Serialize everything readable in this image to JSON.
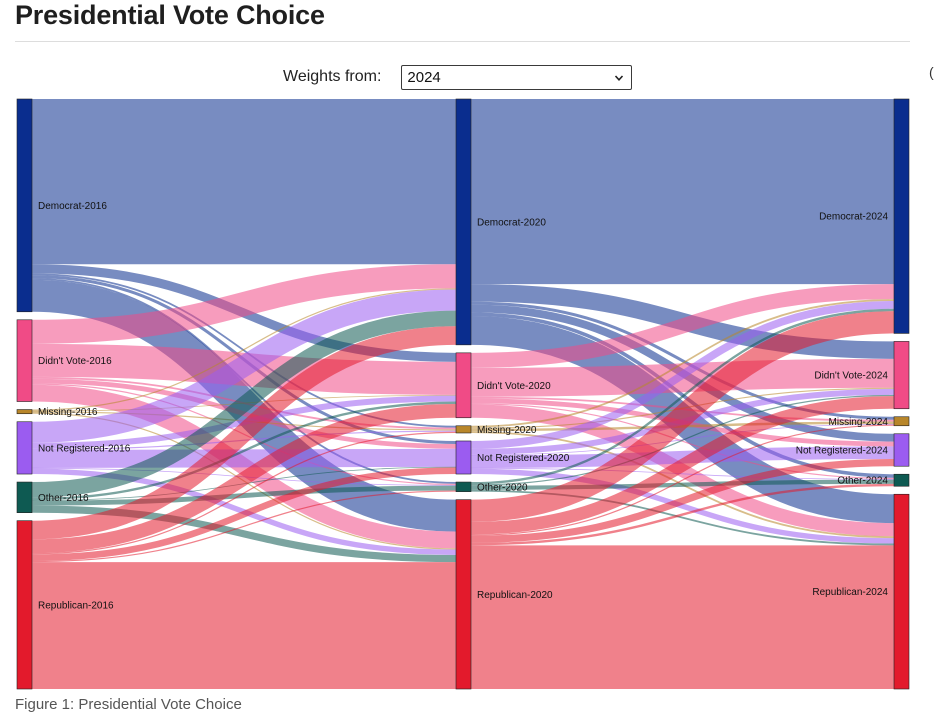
{
  "page": {
    "title": "Presidential Vote Choice",
    "caption": "Figure 1: Presidential Vote Choice",
    "edge_mark": "("
  },
  "controls": {
    "weights_label": "Weights from:",
    "weights_selected": "2024"
  },
  "colors": {
    "Democrat": "#0a2d8e",
    "Didn't Vote": "#f04b86",
    "Missing": "#b8862a",
    "Not Registered": "#9b5cf0",
    "Other": "#0e5a52",
    "Republican": "#e31a2c"
  },
  "chart_data": {
    "type": "sankey",
    "title": "Presidential Vote Choice",
    "columns": [
      "2016",
      "2020",
      "2024"
    ],
    "categories": [
      "Democrat",
      "Didn't Vote",
      "Missing",
      "Not Registered",
      "Other",
      "Republican"
    ],
    "nodes": [
      {
        "id": "Democrat-2016",
        "label": "Democrat-2016",
        "category": "Democrat",
        "column": 0,
        "value": 35.4
      },
      {
        "id": "Didn't Vote-2016",
        "label": "Didn't Vote-2016",
        "category": "Didn't Vote",
        "column": 0,
        "value": 13.6
      },
      {
        "id": "Missing-2016",
        "label": "Missing-2016",
        "category": "Missing",
        "column": 0,
        "value": 0.7
      },
      {
        "id": "Not Registered-2016",
        "label": "Not Registered-2016",
        "category": "Not Registered",
        "column": 0,
        "value": 8.7
      },
      {
        "id": "Other-2016",
        "label": "Other-2016",
        "category": "Other",
        "column": 0,
        "value": 5.1
      },
      {
        "id": "Republican-2016",
        "label": "Republican-2016",
        "category": "Republican",
        "column": 0,
        "value": 28.0
      },
      {
        "id": "Democrat-2020",
        "label": "Democrat-2020",
        "category": "Democrat",
        "column": 1,
        "value": 40.9
      },
      {
        "id": "Didn't Vote-2020",
        "label": "Didn't Vote-2020",
        "category": "Didn't Vote",
        "column": 1,
        "value": 10.8
      },
      {
        "id": "Missing-2020",
        "label": "Missing-2020",
        "category": "Missing",
        "column": 1,
        "value": 1.2
      },
      {
        "id": "Not Registered-2020",
        "label": "Not Registered-2020",
        "category": "Not Registered",
        "column": 1,
        "value": 5.5
      },
      {
        "id": "Other-2020",
        "label": "Other-2020",
        "category": "Other",
        "column": 1,
        "value": 1.6
      },
      {
        "id": "Republican-2020",
        "label": "Republican-2020",
        "category": "Republican",
        "column": 1,
        "value": 31.5
      },
      {
        "id": "Democrat-2024",
        "label": "Democrat-2024",
        "category": "Democrat",
        "column": 2,
        "value": 39.0
      },
      {
        "id": "Didn't Vote-2024",
        "label": "Didn't Vote-2024",
        "category": "Didn't Vote",
        "column": 2,
        "value": 11.2
      },
      {
        "id": "Missing-2024",
        "label": "Missing-2024",
        "category": "Missing",
        "column": 2,
        "value": 1.5
      },
      {
        "id": "Not Registered-2024",
        "label": "Not Registered-2024",
        "category": "Not Registered",
        "column": 2,
        "value": 5.4
      },
      {
        "id": "Other-2024",
        "label": "Other-2024",
        "category": "Other",
        "column": 2,
        "value": 2.0
      },
      {
        "id": "Republican-2024",
        "label": "Republican-2024",
        "category": "Republican",
        "column": 2,
        "value": 32.4
      }
    ],
    "links": [
      {
        "source": "Democrat-2016",
        "target": "Democrat-2020",
        "value": 27.5
      },
      {
        "source": "Democrat-2016",
        "target": "Didn't Vote-2020",
        "value": 1.5
      },
      {
        "source": "Democrat-2016",
        "target": "Missing-2020",
        "value": 0.3
      },
      {
        "source": "Democrat-2016",
        "target": "Not Registered-2020",
        "value": 0.5
      },
      {
        "source": "Democrat-2016",
        "target": "Other-2020",
        "value": 0.3
      },
      {
        "source": "Democrat-2016",
        "target": "Republican-2020",
        "value": 5.3
      },
      {
        "source": "Didn't Vote-2016",
        "target": "Democrat-2020",
        "value": 4.0
      },
      {
        "source": "Didn't Vote-2016",
        "target": "Didn't Vote-2020",
        "value": 5.5
      },
      {
        "source": "Didn't Vote-2016",
        "target": "Missing-2020",
        "value": 0.3
      },
      {
        "source": "Didn't Vote-2016",
        "target": "Not Registered-2020",
        "value": 0.8
      },
      {
        "source": "Didn't Vote-2016",
        "target": "Other-2020",
        "value": 0.2
      },
      {
        "source": "Didn't Vote-2016",
        "target": "Republican-2020",
        "value": 2.8
      },
      {
        "source": "Missing-2016",
        "target": "Democrat-2020",
        "value": 0.2
      },
      {
        "source": "Missing-2016",
        "target": "Didn't Vote-2020",
        "value": 0.1
      },
      {
        "source": "Missing-2016",
        "target": "Missing-2020",
        "value": 0.2
      },
      {
        "source": "Missing-2016",
        "target": "Republican-2020",
        "value": 0.2
      },
      {
        "source": "Not Registered-2016",
        "target": "Democrat-2020",
        "value": 3.5
      },
      {
        "source": "Not Registered-2016",
        "target": "Didn't Vote-2020",
        "value": 1.0
      },
      {
        "source": "Not Registered-2016",
        "target": "Missing-2020",
        "value": 0.2
      },
      {
        "source": "Not Registered-2016",
        "target": "Not Registered-2020",
        "value": 3.0
      },
      {
        "source": "Not Registered-2016",
        "target": "Other-2020",
        "value": 0.1
      },
      {
        "source": "Not Registered-2016",
        "target": "Republican-2020",
        "value": 0.9
      },
      {
        "source": "Other-2016",
        "target": "Democrat-2020",
        "value": 2.6
      },
      {
        "source": "Other-2016",
        "target": "Didn't Vote-2020",
        "value": 0.4
      },
      {
        "source": "Other-2016",
        "target": "Not Registered-2020",
        "value": 0.1
      },
      {
        "source": "Other-2016",
        "target": "Other-2020",
        "value": 0.8
      },
      {
        "source": "Other-2016",
        "target": "Republican-2020",
        "value": 1.2
      },
      {
        "source": "Republican-2016",
        "target": "Democrat-2020",
        "value": 3.1
      },
      {
        "source": "Republican-2016",
        "target": "Didn't Vote-2020",
        "value": 2.3
      },
      {
        "source": "Republican-2016",
        "target": "Missing-2020",
        "value": 0.2
      },
      {
        "source": "Republican-2016",
        "target": "Not Registered-2020",
        "value": 1.1
      },
      {
        "source": "Republican-2016",
        "target": "Other-2020",
        "value": 0.2
      },
      {
        "source": "Republican-2016",
        "target": "Republican-2020",
        "value": 21.1
      },
      {
        "source": "Democrat-2020",
        "target": "Democrat-2024",
        "value": 30.8
      },
      {
        "source": "Democrat-2020",
        "target": "Didn't Vote-2024",
        "value": 2.9
      },
      {
        "source": "Democrat-2020",
        "target": "Missing-2024",
        "value": 0.5
      },
      {
        "source": "Democrat-2020",
        "target": "Not Registered-2024",
        "value": 1.3
      },
      {
        "source": "Democrat-2020",
        "target": "Other-2024",
        "value": 0.6
      },
      {
        "source": "Democrat-2020",
        "target": "Republican-2024",
        "value": 4.8
      },
      {
        "source": "Didn't Vote-2020",
        "target": "Democrat-2024",
        "value": 2.5
      },
      {
        "source": "Didn't Vote-2020",
        "target": "Didn't Vote-2024",
        "value": 4.8
      },
      {
        "source": "Didn't Vote-2020",
        "target": "Missing-2024",
        "value": 0.3
      },
      {
        "source": "Didn't Vote-2020",
        "target": "Not Registered-2024",
        "value": 0.8
      },
      {
        "source": "Didn't Vote-2020",
        "target": "Other-2024",
        "value": 0.2
      },
      {
        "source": "Didn't Vote-2020",
        "target": "Republican-2024",
        "value": 2.2
      },
      {
        "source": "Missing-2020",
        "target": "Democrat-2024",
        "value": 0.3
      },
      {
        "source": "Missing-2020",
        "target": "Didn't Vote-2024",
        "value": 0.2
      },
      {
        "source": "Missing-2020",
        "target": "Missing-2024",
        "value": 0.4
      },
      {
        "source": "Missing-2020",
        "target": "Republican-2024",
        "value": 0.3
      },
      {
        "source": "Not Registered-2020",
        "target": "Democrat-2024",
        "value": 1.3
      },
      {
        "source": "Not Registered-2020",
        "target": "Didn't Vote-2024",
        "value": 1.0
      },
      {
        "source": "Not Registered-2020",
        "target": "Missing-2024",
        "value": 0.1
      },
      {
        "source": "Not Registered-2020",
        "target": "Not Registered-2024",
        "value": 2.1
      },
      {
        "source": "Not Registered-2020",
        "target": "Other-2024",
        "value": 0.1
      },
      {
        "source": "Not Registered-2020",
        "target": "Republican-2024",
        "value": 0.9
      },
      {
        "source": "Other-2020",
        "target": "Democrat-2024",
        "value": 0.4
      },
      {
        "source": "Other-2020",
        "target": "Didn't Vote-2024",
        "value": 0.2
      },
      {
        "source": "Other-2020",
        "target": "Other-2024",
        "value": 0.7
      },
      {
        "source": "Other-2020",
        "target": "Republican-2024",
        "value": 0.3
      },
      {
        "source": "Republican-2020",
        "target": "Democrat-2024",
        "value": 3.7
      },
      {
        "source": "Republican-2020",
        "target": "Didn't Vote-2024",
        "value": 2.1
      },
      {
        "source": "Republican-2020",
        "target": "Missing-2024",
        "value": 0.2
      },
      {
        "source": "Republican-2020",
        "target": "Not Registered-2024",
        "value": 1.2
      },
      {
        "source": "Republican-2020",
        "target": "Other-2024",
        "value": 0.4
      },
      {
        "source": "Republican-2020",
        "target": "Republican-2024",
        "value": 23.9
      }
    ]
  }
}
